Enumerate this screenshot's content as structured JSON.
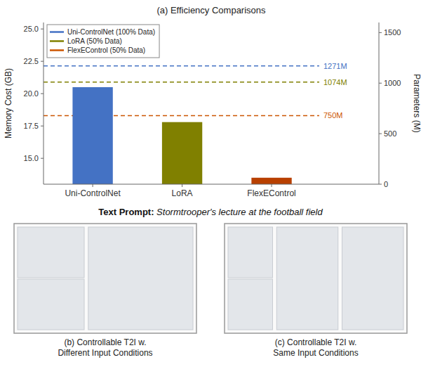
{
  "chart_data": {
    "type": "bar",
    "title": "(a) Efficiency Comparisons",
    "categories": [
      "Uni-ControlNet",
      "LoRA",
      "FlexEControl"
    ],
    "values": [
      20.5,
      17.8,
      13.5
    ],
    "colors": [
      "#4472C4",
      "#808000",
      "#B84000"
    ],
    "ylabel": "Memory Cost (GB)",
    "y2label": "Parameters (M)",
    "ylim": [
      13.0,
      25.5
    ],
    "yticks": [
      {
        "value": 15.0,
        "label": "15.0"
      },
      17.5,
      {
        "value": 20.0,
        "label": "20.0"
      },
      22.5,
      {
        "value": 25.0,
        "label": "25.0"
      }
    ],
    "y2lim": [
      0,
      1600
    ],
    "y2ticks": [
      0,
      500,
      1000,
      1500
    ],
    "hlines": [
      {
        "y": 22.15,
        "label": "1271M",
        "color": "#4472C4",
        "line_style": "dashed"
      },
      {
        "y": 20.9,
        "label": "1074M",
        "color": "#808000",
        "line_style": "dashed"
      },
      {
        "y": 18.3,
        "label": "750M",
        "color": "#CC5500",
        "line_style": "dashed"
      }
    ],
    "legend": "upper left",
    "legend_entries": [
      {
        "name": "Uni-ControlNet (100% Data)",
        "color": "#4472C4"
      },
      {
        "name": "LoRA (50% Data)",
        "color": "#808000"
      },
      {
        "name": "FlexEControl (50% Data)",
        "color": "#CC5500"
      }
    ],
    "grid": false,
    "annotations": [
      "Text Prompt:",
      " Stormtrooper's lecture at the football field",
      "(b) Controllable T2I w.\nDifferent Input Conditions",
      "(c) Controllable T2I w.\nSame Input Conditions"
    ]
  }
}
